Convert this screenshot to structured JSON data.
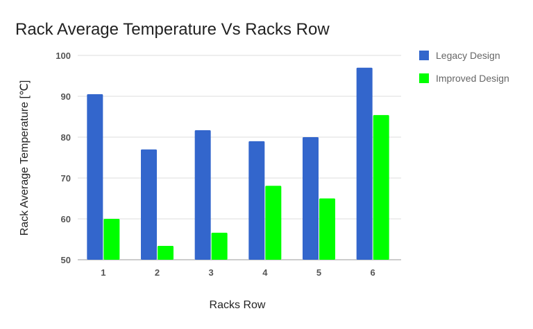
{
  "chart_data": {
    "type": "bar",
    "title": "Rack Average Temperature Vs Racks Row",
    "xlabel": "Racks Row",
    "ylabel": "Rack Average Temperature [℃]",
    "categories": [
      "1",
      "2",
      "3",
      "4",
      "5",
      "6"
    ],
    "ylim": [
      50,
      100
    ],
    "yticks": [
      50,
      60,
      70,
      80,
      90,
      100
    ],
    "grid": true,
    "legend_position": "right",
    "series": [
      {
        "name": "Legacy Design",
        "color": "#3366cc",
        "values": [
          90.5,
          77,
          81.7,
          79,
          80,
          97
        ]
      },
      {
        "name": "Improved Design",
        "color": "#00ff00",
        "values": [
          60,
          53.4,
          56.6,
          68.1,
          65,
          85.4
        ]
      }
    ]
  }
}
